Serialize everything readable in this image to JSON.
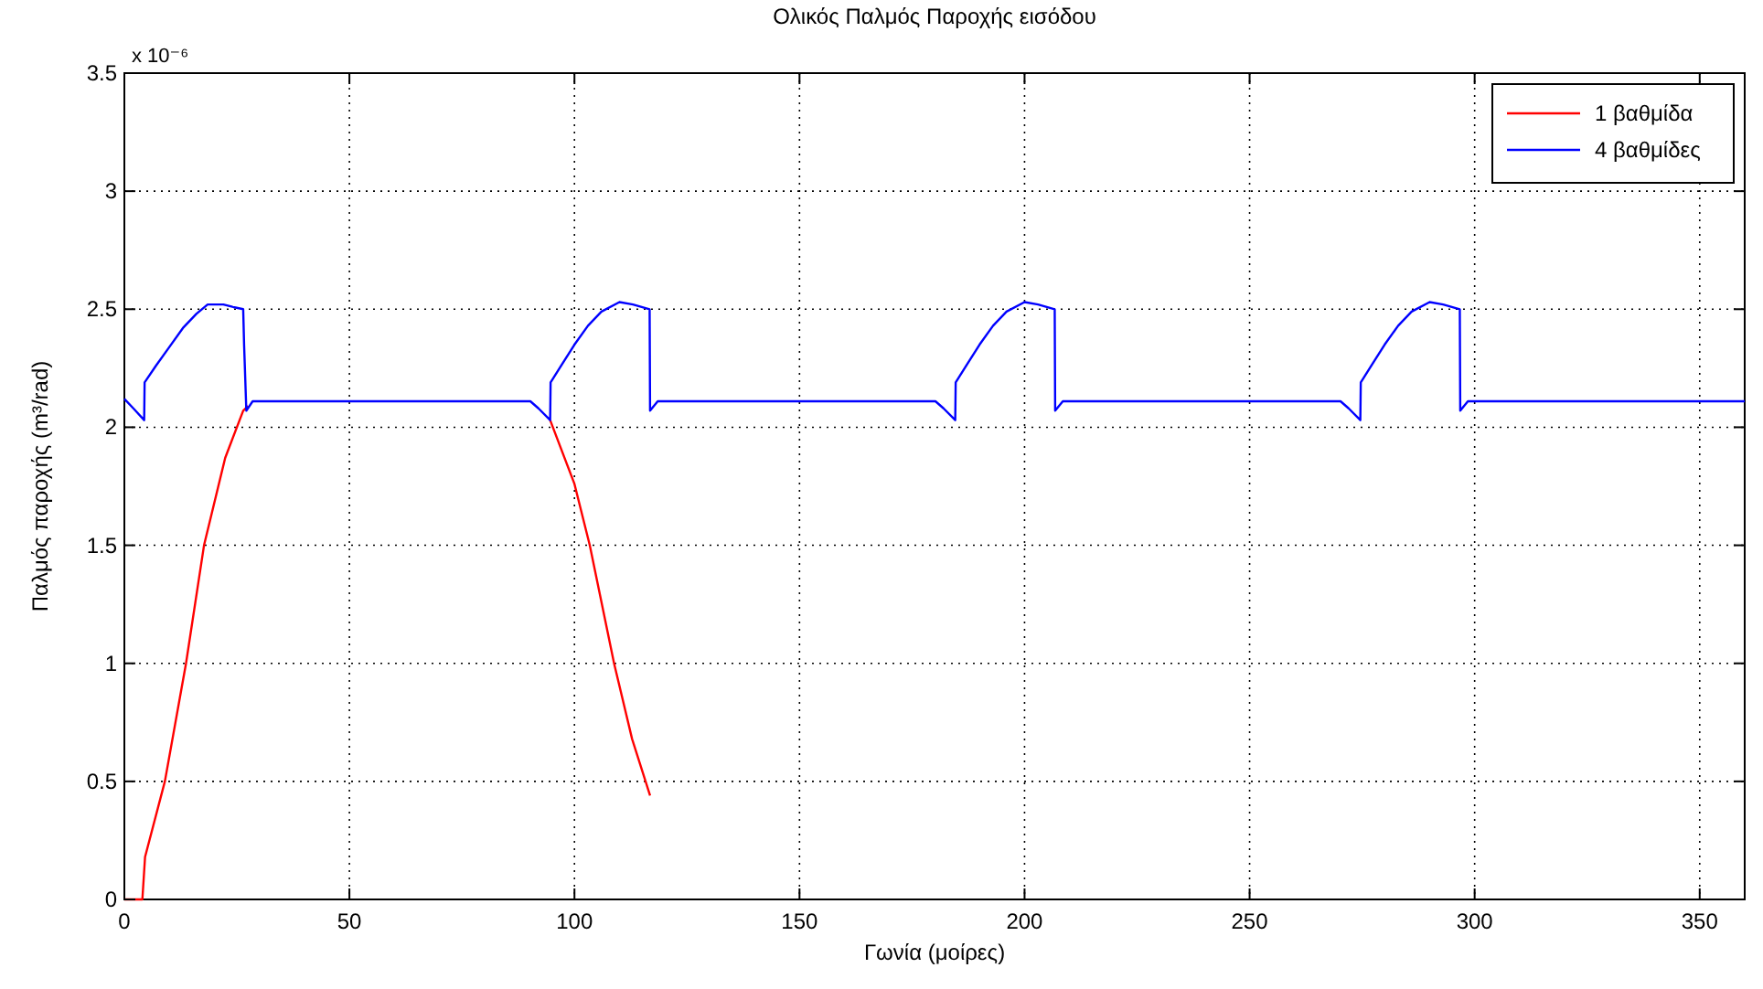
{
  "chart_data": {
    "type": "line",
    "title": "Ολικός Παλμός Παροχής εισόδου",
    "xlabel": "Γωνία (μοίρες)",
    "ylabel": "Παλμός παροχής (m³/rad)",
    "annotations": [
      "x 10⁻⁶"
    ],
    "xlim": [
      0,
      360
    ],
    "xticks": [
      0,
      50,
      100,
      150,
      200,
      250,
      300,
      350
    ],
    "ylim": [
      0,
      3.5
    ],
    "yticks": [
      0,
      0.5,
      1,
      1.5,
      2,
      2.5,
      3,
      3.5
    ],
    "grid": true,
    "legend": "top right",
    "line_style": "solid",
    "series": [
      {
        "name": "1 βαθμίδα",
        "color": "#ff0000",
        "x": [
          0,
          4,
          4.6,
          9,
          13.7,
          17.7,
          22.4,
          26.4,
          27.5,
          28.5,
          90,
          94.6,
          100,
          103.4,
          108.8,
          112.8,
          116.8
        ],
        "values": [
          0,
          0,
          0.18,
          0.5,
          1.0,
          1.5,
          1.87,
          2.07,
          2.09,
          null,
          null,
          2.03,
          1.76,
          1.5,
          1.0,
          0.68,
          0.44
        ]
      },
      {
        "name": "4 βαθμίδες",
        "color": "#0000ff",
        "x": [
          0,
          2,
          4.4,
          4.5,
          7,
          10,
          13,
          16,
          18.5,
          22,
          24,
          26.4,
          26.6,
          27.1,
          28.5,
          90.2,
          92,
          94.6,
          94.7,
          97,
          100,
          103,
          106,
          110,
          113,
          116.7,
          116.8,
          118.5,
          180.2,
          182,
          184.6,
          184.7,
          187,
          190,
          193,
          196,
          200,
          203,
          206.7,
          206.8,
          208.5,
          270.2,
          272,
          274.6,
          274.7,
          277,
          280,
          283,
          286,
          290,
          293,
          296.7,
          296.8,
          298.5,
          360
        ],
        "values": [
          2.12,
          2.08,
          2.03,
          2.19,
          2.26,
          2.34,
          2.42,
          2.48,
          2.52,
          2.52,
          2.51,
          2.5,
          2.35,
          2.07,
          2.11,
          2.11,
          2.08,
          2.03,
          2.19,
          2.26,
          2.35,
          2.43,
          2.49,
          2.53,
          2.52,
          2.5,
          2.07,
          2.11,
          2.11,
          2.08,
          2.03,
          2.19,
          2.26,
          2.35,
          2.43,
          2.49,
          2.53,
          2.52,
          2.5,
          2.07,
          2.11,
          2.11,
          2.08,
          2.03,
          2.19,
          2.26,
          2.35,
          2.43,
          2.49,
          2.53,
          2.52,
          2.5,
          2.07,
          2.11,
          2.11
        ]
      }
    ]
  }
}
